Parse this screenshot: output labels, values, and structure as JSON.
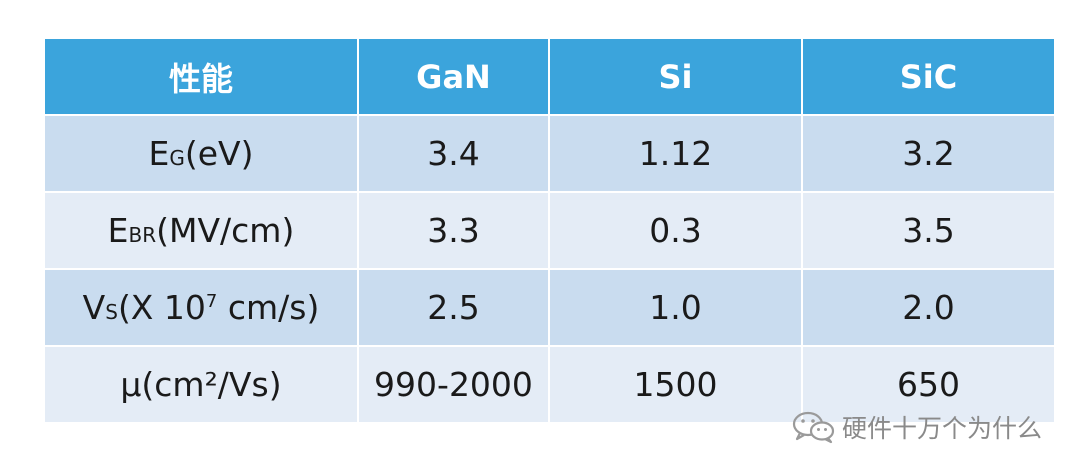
{
  "table": {
    "header": [
      "性能",
      "GaN",
      "Si",
      "SiC"
    ],
    "rows": [
      {
        "label": {
          "main": "E",
          "sub": "G",
          "rest": "(eV)"
        },
        "values": [
          "3.4",
          "1.12",
          "3.2"
        ]
      },
      {
        "label": {
          "main": "E",
          "sub": "BR",
          "rest": "(MV/cm)"
        },
        "values": [
          "3.3",
          "0.3",
          "3.5"
        ]
      },
      {
        "label": {
          "main": "V",
          "sub": "S",
          "pre_sup": "(X 10",
          "sup": "7",
          "rest": " cm/s)"
        },
        "values": [
          "2.5",
          "1.0",
          "2.0"
        ]
      },
      {
        "label": {
          "text": "μ(cm²/Vs)"
        },
        "values": [
          "990-2000",
          "1500",
          "650"
        ]
      }
    ]
  },
  "watermark": {
    "text": "硬件十万个为什么",
    "icon": "wechat-icon"
  },
  "colors": {
    "header_bg": "#3ba4dc",
    "row_dark": "#c9dcef",
    "row_light": "#e4ecf6"
  }
}
